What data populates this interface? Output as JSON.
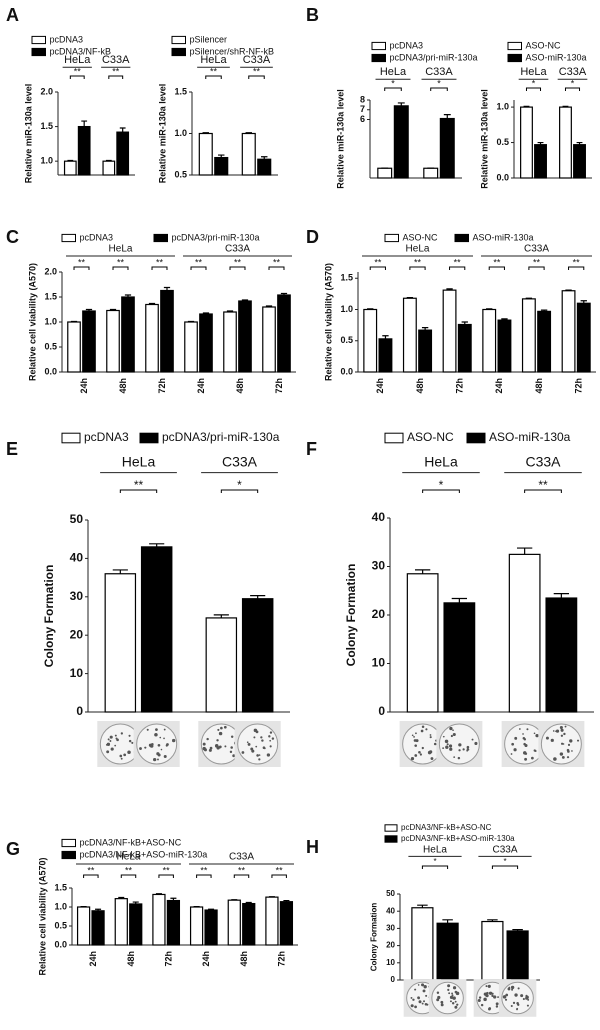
{
  "chart_data": [
    {
      "label": "A",
      "type": "bar",
      "ylabel": "Relative miR-130a level",
      "categories": [
        "HeLa",
        "C33A"
      ],
      "series": [
        {
          "name": "pcDNA3",
          "color": "#ffffff",
          "values": [
            1.0,
            1.0
          ],
          "errors": [
            0.01,
            0.01
          ]
        },
        {
          "name": "pcDNA3/NF-kB",
          "color": "#000000",
          "values": [
            1.5,
            1.42
          ],
          "errors": [
            0.08,
            0.06
          ]
        }
      ],
      "ylim": [
        0.8,
        2.0
      ],
      "yticks": [
        {
          "value": 1,
          "label": "1.0"
        },
        1.5,
        {
          "value": 2,
          "label": "2.0"
        }
      ],
      "significance": [
        "**",
        "**"
      ]
    },
    {
      "type": "bar",
      "ylabel": "Relative miR-130a level",
      "categories": [
        "HeLa",
        "C33A"
      ],
      "series": [
        {
          "name": "pSilencer",
          "color": "#ffffff",
          "values": [
            1.0,
            1.0
          ],
          "errors": [
            0.01,
            0.01
          ]
        },
        {
          "name": "pSilencer/shR-NF-kB",
          "color": "#000000",
          "values": [
            0.71,
            0.69
          ],
          "errors": [
            0.03,
            0.03
          ]
        }
      ],
      "ylim": [
        0.5,
        1.5
      ],
      "yticks": [
        0.5,
        {
          "value": 1,
          "label": "1.0"
        },
        1.5
      ],
      "significance": [
        "**",
        "**"
      ]
    },
    {
      "label": "B",
      "type": "bar",
      "ylabel": "Relative miR-130a level",
      "categories": [
        "HeLa",
        "C33A"
      ],
      "series": [
        {
          "name": "pcDNA3",
          "color": "#ffffff",
          "values": [
            1,
            1
          ],
          "errors": [
            0.02,
            0.02
          ]
        },
        {
          "name": "pcDNA3/pri-miR-130a",
          "color": "#000000",
          "values": [
            7.4,
            6.1
          ],
          "errors": [
            0.3,
            0.4
          ]
        }
      ],
      "ylim": [
        0,
        8
      ],
      "yticks": [
        6,
        7,
        8
      ],
      "significance": [
        "*",
        "*"
      ]
    },
    {
      "type": "bar",
      "ylabel": "Relative miR-130a level",
      "categories": [
        "HeLa",
        "C33A"
      ],
      "series": [
        {
          "name": "ASO-NC",
          "color": "#ffffff",
          "values": [
            1.0,
            1.0
          ],
          "errors": [
            0.01,
            0.01
          ]
        },
        {
          "name": "ASO-miR-130a",
          "color": "#000000",
          "values": [
            0.47,
            0.47
          ],
          "errors": [
            0.03,
            0.03
          ]
        }
      ],
      "ylim": [
        0,
        1.1
      ],
      "yticks": [
        {
          "value": 0,
          "label": "0.0"
        },
        0.5,
        {
          "value": 1,
          "label": "1.0"
        }
      ],
      "significance": [
        "*",
        "*"
      ]
    },
    {
      "label": "C",
      "type": "bar",
      "ylabel": "Relative cell viability (A570)",
      "groups": [
        "HeLa",
        "C33A"
      ],
      "categories": [
        "24h",
        "48h",
        "72h",
        "24h",
        "48h",
        "72h"
      ],
      "series": [
        {
          "name": "pcDNA3",
          "color": "#ffffff",
          "values": [
            1.0,
            1.23,
            1.35,
            1.0,
            1.2,
            1.3
          ],
          "errors": [
            0.01,
            0.02,
            0.02,
            0.01,
            0.02,
            0.02
          ]
        },
        {
          "name": "pcDNA3/pri-miR-130a",
          "color": "#000000",
          "values": [
            1.22,
            1.5,
            1.63,
            1.16,
            1.42,
            1.54
          ],
          "errors": [
            0.03,
            0.04,
            0.06,
            0.02,
            0.02,
            0.03
          ]
        }
      ],
      "ylim": [
        0,
        2.0
      ],
      "yticks": [
        {
          "value": 0,
          "label": "0.0"
        },
        0.5,
        {
          "value": 1,
          "label": "1.0"
        },
        1.5,
        {
          "value": 2,
          "label": "2.0"
        }
      ],
      "significance": [
        "**",
        "**",
        "**",
        "**",
        "**",
        "**"
      ]
    },
    {
      "label": "D",
      "type": "bar",
      "ylabel": "Relative cell viability (A570)",
      "groups": [
        "HeLa",
        "C33A"
      ],
      "categories": [
        "24h",
        "48h",
        "72h",
        "24h",
        "48h",
        "72h"
      ],
      "series": [
        {
          "name": "ASO-NC",
          "color": "#ffffff",
          "values": [
            1.0,
            1.18,
            1.31,
            1.0,
            1.17,
            1.3
          ],
          "errors": [
            0.01,
            0.01,
            0.02,
            0.01,
            0.01,
            0.01
          ]
        },
        {
          "name": "ASO-miR-130a",
          "color": "#000000",
          "values": [
            0.53,
            0.67,
            0.76,
            0.83,
            0.97,
            1.1
          ],
          "errors": [
            0.05,
            0.04,
            0.04,
            0.02,
            0.02,
            0.04
          ]
        }
      ],
      "ylim": [
        0,
        1.6
      ],
      "yticks": [
        {
          "value": 0,
          "label": "0.0"
        },
        0.5,
        {
          "value": 1,
          "label": "1.0"
        },
        1.5
      ],
      "significance": [
        "**",
        "**",
        "**",
        "**",
        "**",
        "**"
      ]
    },
    {
      "label": "E",
      "type": "bar",
      "ylabel": "Colony Formation",
      "categories": [
        "HeLa",
        "C33A"
      ],
      "series": [
        {
          "name": "pcDNA3",
          "color": "#ffffff",
          "values": [
            36,
            24.5
          ],
          "errors": [
            1,
            0.8
          ]
        },
        {
          "name": "pcDNA3/pri-miR-130a",
          "color": "#000000",
          "values": [
            43,
            29.5
          ],
          "errors": [
            0.8,
            0.8
          ]
        }
      ],
      "ylim": [
        0,
        50
      ],
      "yticks": [
        0,
        10,
        20,
        30,
        40,
        50
      ],
      "significance": [
        "**",
        "*"
      ]
    },
    {
      "label": "F",
      "type": "bar",
      "ylabel": "Colony Formation",
      "categories": [
        "HeLa",
        "C33A"
      ],
      "series": [
        {
          "name": "ASO-NC",
          "color": "#ffffff",
          "values": [
            28.5,
            32.5
          ],
          "errors": [
            0.8,
            1.3
          ]
        },
        {
          "name": "ASO-miR-130a",
          "color": "#000000",
          "values": [
            22.5,
            23.5
          ],
          "errors": [
            0.9,
            0.9
          ]
        }
      ],
      "ylim": [
        0,
        40
      ],
      "yticks": [
        0,
        10,
        20,
        30,
        40
      ],
      "significance": [
        "*",
        "**"
      ]
    },
    {
      "label": "G",
      "type": "bar",
      "ylabel": "Relative cell viability (A570)",
      "groups": [
        "HeLa",
        "C33A"
      ],
      "categories": [
        "24h",
        "48h",
        "72h",
        "24h",
        "48h",
        "72h"
      ],
      "series": [
        {
          "name": "pcDNA3/NF-kB+ASO-NC",
          "color": "#ffffff",
          "values": [
            1.0,
            1.22,
            1.33,
            1.0,
            1.18,
            1.26
          ],
          "errors": [
            0.01,
            0.03,
            0.02,
            0.01,
            0.01,
            0.01
          ]
        },
        {
          "name": "pcDNA3/NF-kB+ASO-miR-130a",
          "color": "#000000",
          "values": [
            0.9,
            1.08,
            1.17,
            0.92,
            1.09,
            1.14
          ],
          "errors": [
            0.04,
            0.05,
            0.06,
            0.02,
            0.03,
            0.03
          ]
        }
      ],
      "ylim": [
        0,
        1.5
      ],
      "yticks": [
        {
          "value": 0,
          "label": "0.0"
        },
        0.5,
        {
          "value": 1,
          "label": "1.0"
        },
        1.5
      ],
      "significance": [
        "**",
        "**",
        "**",
        "**",
        "**",
        "**"
      ]
    },
    {
      "label": "H",
      "type": "bar",
      "ylabel": "Colony Formation",
      "categories": [
        "HeLa",
        "C33A"
      ],
      "series": [
        {
          "name": "pcDNA3/NF-kB+ASO-NC",
          "color": "#ffffff",
          "values": [
            42,
            34
          ],
          "errors": [
            1.5,
            1
          ]
        },
        {
          "name": "pcDNA3/NF-kB+ASO-miR-130a",
          "color": "#000000",
          "values": [
            33,
            28.5
          ],
          "errors": [
            2,
            0.8
          ]
        }
      ],
      "ylim": [
        0,
        50
      ],
      "yticks": [
        0,
        10,
        20,
        30,
        40,
        50
      ],
      "significance": [
        "*",
        "*"
      ]
    }
  ]
}
